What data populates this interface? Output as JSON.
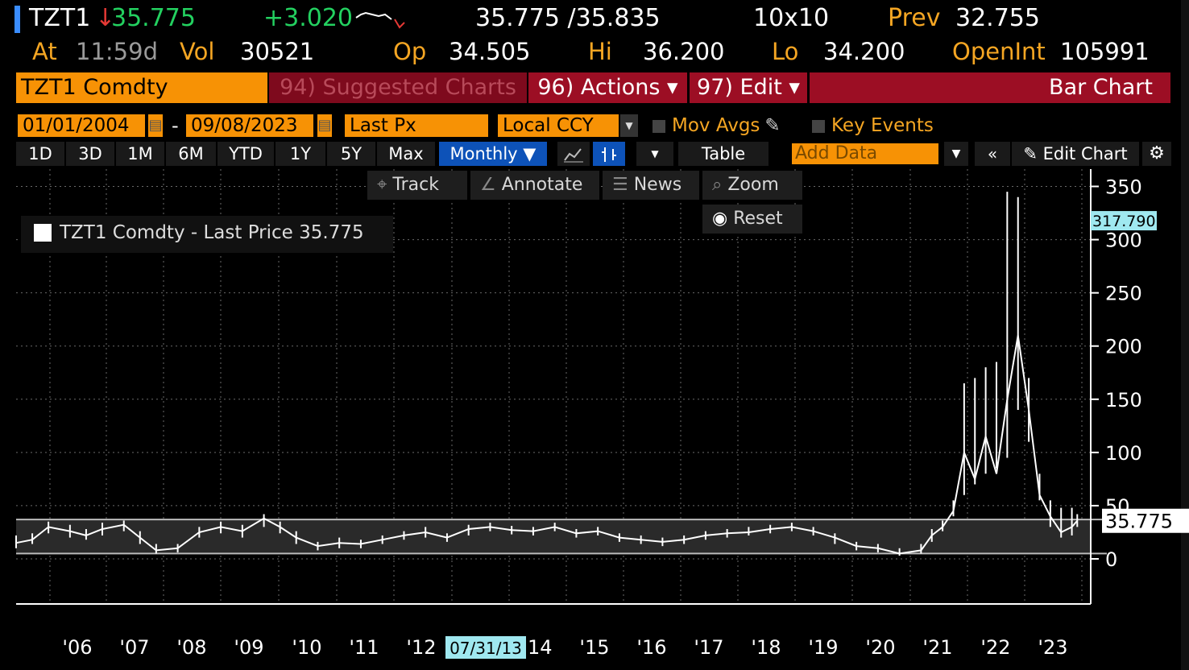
{
  "quote": {
    "ticker": "TZT1",
    "down_arrow": "↓",
    "last": "35.775",
    "change": "+3.020",
    "bid_ask": "35.775 /35.835",
    "size": "10x10",
    "prev_label": "Prev",
    "prev": "32.755",
    "at_label": "At",
    "time": "11:59d",
    "vol_label": "Vol",
    "vol": "30521",
    "op_label": "Op",
    "op": "34.505",
    "hi_label": "Hi",
    "hi": "36.200",
    "lo_label": "Lo",
    "lo": "34.200",
    "oi_label": "OpenInt",
    "oi": "105991"
  },
  "menubar": {
    "security": "TZT1 Comdty",
    "suggested": "94) Suggested Charts",
    "actions": "96) Actions ▾",
    "edit": "97) Edit ▾",
    "chart_type": "Bar Chart"
  },
  "controls": {
    "start_date": "01/01/2004",
    "dash": "-",
    "end_date": "09/08/2023",
    "field": "Last Px",
    "currency": "Local CCY",
    "mov_avgs": "Mov Avgs",
    "key_events": "Key Events"
  },
  "toolbar": {
    "periods": [
      "1D",
      "3D",
      "1M",
      "6M",
      "YTD",
      "1Y",
      "5Y",
      "Max"
    ],
    "frequency": "Monthly ▼",
    "table": "Table",
    "add_data_placeholder": "Add Data",
    "edit_chart": "Edit Chart"
  },
  "chart_tools": {
    "track": "Track",
    "annotate": "Annotate",
    "news": "News",
    "zoom": "Zoom",
    "reset": "Reset"
  },
  "legend": {
    "text": "TZT1 Comdty - Last Price 35.775"
  },
  "colors": {
    "amber": "#f5a623",
    "orange": "#f79205",
    "red": "#9c0e24",
    "green": "#23d160",
    "blue": "#0d52b8",
    "cyan": "#9fe8f0"
  },
  "chart_data": {
    "type": "line",
    "title": "",
    "xlabel": "",
    "ylabel": "",
    "ylim": [
      0,
      360
    ],
    "yticks": [
      0,
      50,
      100,
      150,
      200,
      250,
      300,
      350
    ],
    "ytick_labels": [
      "0",
      "50",
      "100",
      "150",
      "200",
      "250",
      "300",
      "350"
    ],
    "xtick_labels": [
      "'06",
      "'07",
      "'08",
      "'09",
      "'10",
      "'11",
      "'12",
      "'14",
      "'15",
      "'16",
      "'17",
      "'18",
      "'19",
      "'20",
      "'21",
      "'22",
      "'23"
    ],
    "hover_date": "07/31/13",
    "last_value_label": "35.775",
    "cursor_value_label": "317.790",
    "series": [
      {
        "name": "TZT1 Comdty - Last Price",
        "x": [
          2004.0,
          2004.3,
          2004.6,
          2005.0,
          2005.3,
          2005.6,
          2006.0,
          2006.3,
          2006.6,
          2007.0,
          2007.4,
          2007.8,
          2008.2,
          2008.6,
          2008.9,
          2009.2,
          2009.6,
          2010.0,
          2010.4,
          2010.8,
          2011.2,
          2011.6,
          2012.0,
          2012.4,
          2012.8,
          2013.2,
          2013.6,
          2014.0,
          2014.4,
          2014.8,
          2015.2,
          2015.6,
          2016.0,
          2016.4,
          2016.8,
          2017.2,
          2017.6,
          2018.0,
          2018.4,
          2018.8,
          2019.2,
          2019.6,
          2020.0,
          2020.4,
          2020.8,
          2021.0,
          2021.2,
          2021.4,
          2021.6,
          2021.8,
          2022.0,
          2022.2,
          2022.4,
          2022.6,
          2022.8,
          2023.0,
          2023.2,
          2023.4,
          2023.6,
          2023.7
        ],
        "values": [
          15,
          18,
          30,
          26,
          22,
          28,
          32,
          20,
          8,
          10,
          25,
          30,
          26,
          38,
          30,
          20,
          12,
          15,
          14,
          18,
          22,
          25,
          20,
          28,
          30,
          27,
          26,
          30,
          24,
          26,
          20,
          18,
          16,
          18,
          22,
          24,
          25,
          28,
          30,
          26,
          20,
          12,
          10,
          5,
          8,
          22,
          30,
          45,
          100,
          75,
          115,
          80,
          150,
          210,
          140,
          60,
          40,
          25,
          30,
          35.775
        ],
        "highs": [
          22,
          24,
          35,
          32,
          28,
          34,
          36,
          26,
          14,
          14,
          30,
          35,
          32,
          42,
          35,
          26,
          16,
          20,
          18,
          22,
          26,
          30,
          24,
          32,
          34,
          31,
          30,
          34,
          28,
          30,
          24,
          22,
          20,
          22,
          26,
          28,
          30,
          32,
          34,
          30,
          24,
          16,
          14,
          10,
          14,
          28,
          36,
          55,
          165,
          170,
          180,
          185,
          345,
          340,
          170,
          80,
          55,
          48,
          48,
          42
        ],
        "lows": [
          10,
          14,
          24,
          20,
          18,
          22,
          26,
          14,
          5,
          6,
          20,
          24,
          20,
          30,
          24,
          14,
          8,
          10,
          10,
          14,
          18,
          20,
          16,
          22,
          26,
          23,
          22,
          26,
          20,
          22,
          16,
          14,
          12,
          14,
          18,
          20,
          22,
          24,
          26,
          22,
          14,
          8,
          6,
          3,
          5,
          16,
          26,
          40,
          60,
          70,
          80,
          85,
          95,
          140,
          110,
          55,
          30,
          20,
          22,
          30
        ]
      }
    ]
  }
}
